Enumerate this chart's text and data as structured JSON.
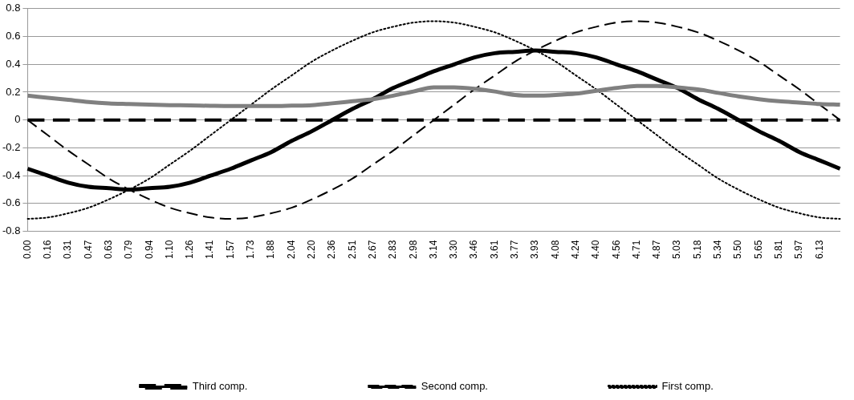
{
  "chart_data": {
    "type": "line",
    "categories": [
      "0.00",
      "0.16",
      "0.31",
      "0.47",
      "0.63",
      "0.79",
      "0.94",
      "1.10",
      "1.26",
      "1.41",
      "1.57",
      "1.73",
      "1.88",
      "2.04",
      "2.20",
      "2.36",
      "2.51",
      "2.67",
      "2.83",
      "2.98",
      "3.14",
      "3.30",
      "3.46",
      "3.61",
      "3.77",
      "3.93",
      "4.08",
      "4.24",
      "4.40",
      "4.56",
      "4.71",
      "4.87",
      "5.03",
      "5.18",
      "5.34",
      "5.50",
      "5.65",
      "5.81",
      "5.97",
      "6.13",
      null
    ],
    "series": [
      {
        "name": "First comp.",
        "color": "#000000",
        "line_style": "dotted",
        "values": [
          -0.71,
          -0.7,
          -0.67,
          -0.63,
          -0.57,
          -0.5,
          -0.42,
          -0.32,
          -0.22,
          -0.11,
          0,
          0.11,
          0.22,
          0.32,
          0.42,
          0.5,
          0.57,
          0.63,
          0.67,
          0.7,
          0.71,
          0.7,
          0.67,
          0.63,
          0.57,
          0.5,
          0.42,
          0.32,
          0.22,
          0.11,
          0,
          -0.11,
          -0.22,
          -0.32,
          -0.42,
          -0.5,
          -0.57,
          -0.63,
          -0.67,
          -0.7,
          -0.71
        ]
      },
      {
        "name": "Second comp.",
        "color": "#000000",
        "line_style": "dashed",
        "values": [
          0,
          -0.11,
          -0.22,
          -0.32,
          -0.42,
          -0.5,
          -0.57,
          -0.63,
          -0.67,
          -0.7,
          -0.71,
          -0.7,
          -0.67,
          -0.63,
          -0.57,
          -0.5,
          -0.42,
          -0.32,
          -0.22,
          -0.11,
          0,
          0.11,
          0.22,
          0.32,
          0.42,
          0.5,
          0.57,
          0.63,
          0.67,
          0.7,
          0.71,
          0.7,
          0.67,
          0.63,
          0.57,
          0.5,
          0.42,
          0.32,
          0.22,
          0.11,
          0
        ]
      },
      {
        "name": "Third comp.",
        "color": "#000000",
        "line_style": "dashed",
        "values": [
          0,
          0,
          0,
          0,
          0,
          0,
          0,
          0,
          0,
          0,
          0,
          0,
          0,
          0,
          0,
          0,
          0,
          0,
          0,
          0,
          0,
          0,
          0,
          0,
          0,
          0,
          0,
          0,
          0,
          0,
          0,
          0,
          0,
          0,
          0,
          0,
          0,
          0,
          0,
          0,
          0
        ]
      },
      {
        "color": "#000000",
        "line_style": "solid",
        "values": [
          -0.35,
          -0.4,
          -0.45,
          -0.48,
          -0.49,
          -0.5,
          -0.49,
          -0.48,
          -0.45,
          -0.4,
          -0.35,
          -0.29,
          -0.23,
          -0.15,
          -0.08,
          0,
          0.08,
          0.15,
          0.23,
          0.29,
          0.35,
          0.4,
          0.45,
          0.48,
          0.49,
          0.5,
          0.49,
          0.48,
          0.45,
          0.4,
          0.35,
          0.29,
          0.23,
          0.15,
          0.08,
          0,
          -0.08,
          -0.15,
          -0.23,
          -0.29,
          -0.35
        ]
      },
      {
        "color": "#808080",
        "line_style": "solid",
        "values": [
          0.175,
          0.16,
          0.145,
          0.13,
          0.12,
          0.115,
          0.11,
          0.107,
          0.105,
          0.102,
          0.1,
          0.1,
          0.1,
          0.103,
          0.107,
          0.12,
          0.135,
          0.15,
          0.175,
          0.205,
          0.235,
          0.235,
          0.225,
          0.205,
          0.18,
          0.175,
          0.18,
          0.19,
          0.21,
          0.23,
          0.245,
          0.245,
          0.235,
          0.22,
          0.195,
          0.17,
          0.15,
          0.135,
          0.125,
          0.115,
          0.11
        ]
      }
    ],
    "ylim": [
      -0.8,
      0.8
    ],
    "yticks": [
      -0.8,
      -0.6,
      -0.4,
      -0.2,
      0,
      0.2,
      0.4,
      0.6,
      0.8
    ],
    "grid": "y",
    "legend": "bottom",
    "marker": "none"
  }
}
